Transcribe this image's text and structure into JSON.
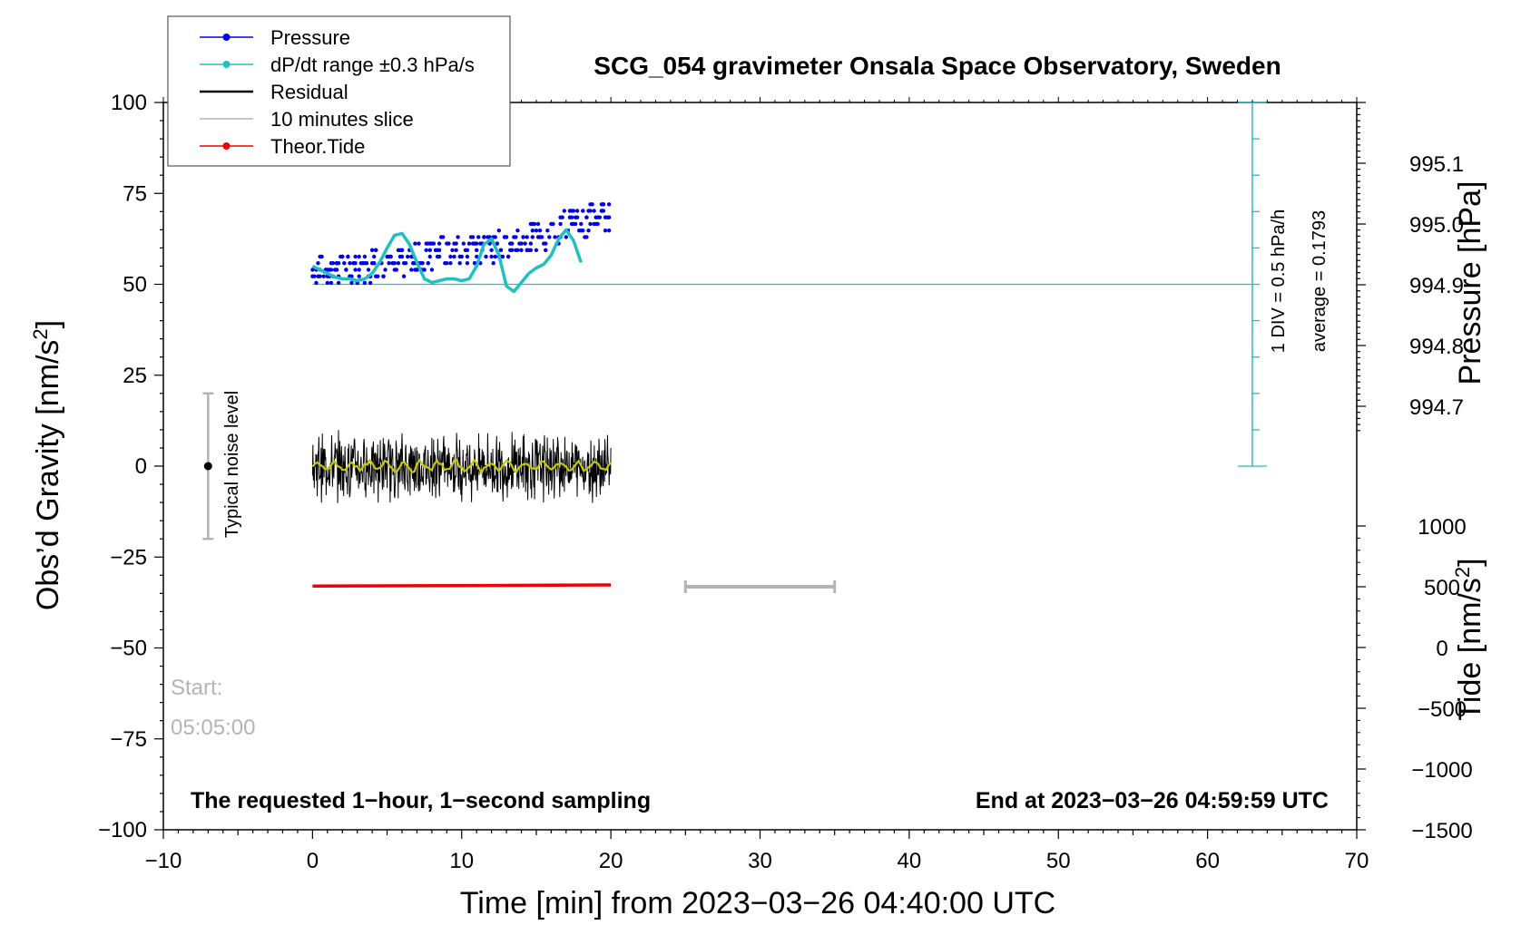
{
  "title": "SCG_054 gravimeter Onsala Space Observatory, Sweden",
  "xlabel": "Time [min] from 2023−03−26 04:40:00 UTC",
  "ylabel_left": "Obs’d Gravity [nm/s",
  "ylabel_left_sup": "2",
  "ylabel_left_close": "]",
  "ylabel_right_pressure": "Pressure [hPa]",
  "ylabel_right_tide": "Tide [nm/s",
  "ylabel_right_tide_sup": "2",
  "ylabel_right_tide_close": "]",
  "note_left": "The requested 1−hour, 1−second sampling",
  "note_right": "End at 2023−03−26 04:59:59 UTC",
  "start_label": "Start:",
  "start_time": "05:05:00",
  "noise_label": "Typical noise level",
  "scale_div": "1 DIV = 0.5 hPa/h",
  "scale_avg": "average = 0.1793",
  "colors": {
    "pressure": "#0000ee",
    "dpdt": "#20c0c0",
    "residual": "#000000",
    "slice": "#b4b4b4",
    "tide": "#ee0000",
    "smooth": "#c8c800"
  },
  "legend": [
    {
      "label": "Pressure",
      "color": "#0000ee",
      "marker": true
    },
    {
      "label": "dP/dt range ±0.3 hPa/s",
      "color": "#20c0c0",
      "marker": true
    },
    {
      "label": "Residual",
      "color": "#000000",
      "marker": false
    },
    {
      "label": "10 minutes slice",
      "color": "#b4b4b4",
      "marker": false
    },
    {
      "label": "Theor.Tide",
      "color": "#ee0000",
      "marker": true
    }
  ],
  "chart_data": {
    "type": "line",
    "x_range": [
      -10,
      70
    ],
    "x_ticks": [
      -10,
      0,
      10,
      20,
      30,
      40,
      50,
      60,
      70
    ],
    "x_tick_labels": [
      "−10",
      "0",
      "10",
      "20",
      "30",
      "40",
      "50",
      "60",
      "70"
    ],
    "y_left_range": [
      -100,
      100
    ],
    "y_left_ticks": [
      -100,
      -75,
      -50,
      -25,
      0,
      25,
      50,
      75,
      100
    ],
    "y_left_tick_labels": [
      "−100",
      "−75",
      "−50",
      "−25",
      "0",
      "25",
      "50",
      "75",
      "100"
    ],
    "pressure_ticks": [
      994.7,
      994.8,
      994.9,
      995.0,
      995.1
    ],
    "pressure_tick_labels": [
      "994.7",
      "994.8",
      "994.9",
      "995.0",
      "995.1"
    ],
    "tide_ticks": [
      -1500,
      -1000,
      -500,
      0,
      500,
      1000
    ],
    "tide_tick_labels": [
      "−1500",
      "−1000",
      "−500",
      "0",
      "500",
      "1000"
    ],
    "dpdt_baseline_gravity": 50,
    "scale_bar_x": 63,
    "scale_bar_range_gravity": [
      0,
      100
    ],
    "dpdt_curve": {
      "x": [
        0,
        0.5,
        1,
        1.5,
        2,
        2.5,
        3,
        3.5,
        4,
        4.5,
        5,
        5.5,
        6,
        6.5,
        7,
        7.5,
        8,
        8.5,
        9,
        9.5,
        10,
        10.5,
        11,
        11.5,
        12,
        12.5,
        13,
        13.5,
        14,
        14.5,
        15,
        15.5,
        16,
        16.5,
        17,
        17.5,
        18
      ],
      "gravity": [
        55,
        54,
        53,
        52,
        51.5,
        51.5,
        51,
        51.5,
        53,
        56,
        60,
        63.5,
        64,
        61,
        56,
        51.5,
        50.5,
        51,
        51.5,
        51.5,
        51,
        51.5,
        55,
        61,
        62.5,
        58,
        49.5,
        48,
        50.5,
        53,
        54.5,
        55.5,
        58,
        62.5,
        65,
        62,
        56
      ]
    },
    "pressure_series": {
      "x": [
        0,
        1,
        2,
        3,
        4,
        5,
        6,
        7,
        8,
        9,
        10,
        11,
        12,
        13,
        14,
        15,
        16,
        17,
        18,
        19,
        20
      ],
      "gravity": [
        54,
        54,
        54,
        54,
        55,
        55,
        56,
        57,
        58,
        59,
        59,
        60,
        60,
        61,
        62,
        63,
        64,
        66,
        67,
        68,
        69
      ]
    },
    "residual_envelope": {
      "x_range": [
        0,
        20
      ],
      "center": 0,
      "amplitude": 8,
      "smoothed_yellow_center": 0
    },
    "noise_bar": {
      "x": -7,
      "center": 0,
      "range": [
        -20,
        20
      ]
    },
    "tide_series": {
      "x": [
        0,
        10,
        20
      ],
      "tide": [
        505,
        510,
        515
      ]
    },
    "slice_bar": {
      "x_start": 25,
      "x_end": 35,
      "tide": 500
    }
  }
}
